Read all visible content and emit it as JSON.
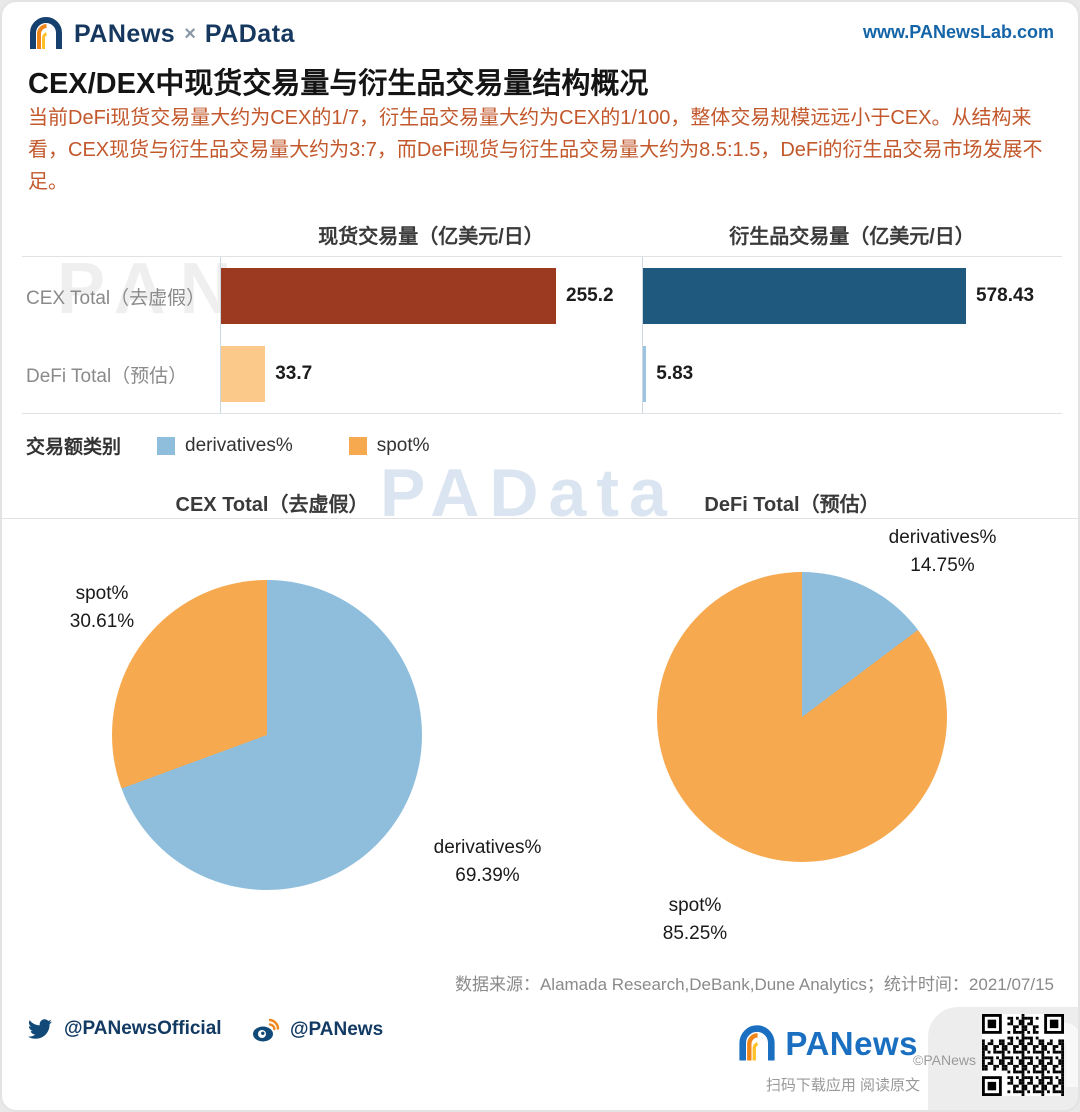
{
  "header": {
    "brand_left": "PANews",
    "brand_sep": "×",
    "brand_right": "PAData",
    "website": "www.PANewsLab.com"
  },
  "title": "CEX/DEX中现货交易量与衍生品交易量结构概况",
  "description": "当前DeFi现货交易量大约为CEX的1/7，衍生品交易量大约为CEX的1/100，整体交易规模远远小于CEX。从结构来看，CEX现货与衍生品交易量大约为3:7，而DeFi现货与衍生品交易量大约为8.5:1.5，DeFi的衍生品交易市场发展不足。",
  "legend": {
    "title": "交易额类别",
    "items": [
      {
        "label": "derivatives%",
        "color": "#8FBEDD"
      },
      {
        "label": "spot%",
        "color": "#F7A94F"
      }
    ]
  },
  "chart_data": [
    {
      "type": "bar",
      "orientation": "horizontal",
      "title": "现货交易量（亿美元/日）",
      "categories": [
        "CEX Total（去虚假）",
        "DeFi Total（预估）"
      ],
      "slices": [
        {
          "label": "CEX Total（去虚假）",
          "value": 255.2,
          "color": "#9C3A21"
        },
        {
          "label": "DeFi Total（预估）",
          "value": 33.7,
          "color": "#FBCA8B"
        }
      ]
    },
    {
      "type": "bar",
      "orientation": "horizontal",
      "title": "衍生品交易量（亿美元/日）",
      "categories": [
        "CEX Total（去虚假）",
        "DeFi Total（预估）"
      ],
      "slices": [
        {
          "label": "CEX Total（去虚假）",
          "value": 578.43,
          "color": "#20597E"
        },
        {
          "label": "DeFi Total（预估）",
          "value": 5.83,
          "color": "#9CC3DF"
        }
      ]
    },
    {
      "type": "pie",
      "title": "CEX Total（去虚假）",
      "slices": [
        {
          "label": "derivatives%",
          "value": 69.39,
          "color": "#8FBEDD"
        },
        {
          "label": "spot%",
          "value": 30.61,
          "color": "#F7A94F"
        }
      ]
    },
    {
      "type": "pie",
      "title": "DeFi Total（预估）",
      "slices": [
        {
          "label": "derivatives%",
          "value": 14.75,
          "color": "#8FBEDD"
        },
        {
          "label": "spot%",
          "value": 85.25,
          "color": "#F7A94F"
        }
      ]
    }
  ],
  "watermarks": {
    "bars": "PANews",
    "pies": "PAData",
    "corner": "n"
  },
  "footer": {
    "source_text": "数据来源：Alamada Research,DeBank,Dune Analytics；统计时间：2021/07/15",
    "twitter_handle": "@PANewsOfficial",
    "weibo_handle": "@PANews",
    "logo_text": "PANews",
    "qr_caption": "扫码下载应用 阅读原文",
    "copyright": "©PANews"
  }
}
